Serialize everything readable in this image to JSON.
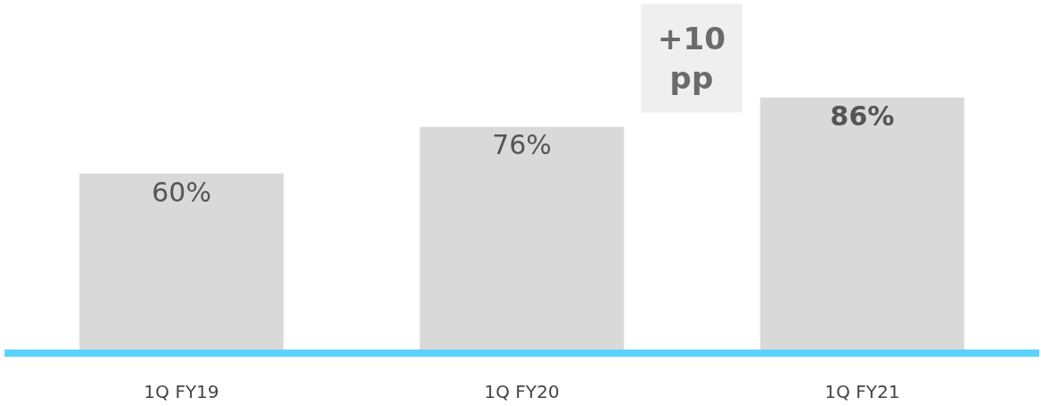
{
  "chart_data": {
    "type": "bar",
    "categories": [
      "1Q FY19",
      "1Q FY20",
      "1Q FY21"
    ],
    "values": [
      60,
      76,
      86
    ],
    "value_labels": [
      "60%",
      "76%",
      "86%"
    ],
    "color": "#d9d9d9",
    "ylim": [
      0,
      118
    ],
    "tick_labels": "x",
    "legend": false,
    "annotations": [
      "+10 pp"
    ]
  }
}
